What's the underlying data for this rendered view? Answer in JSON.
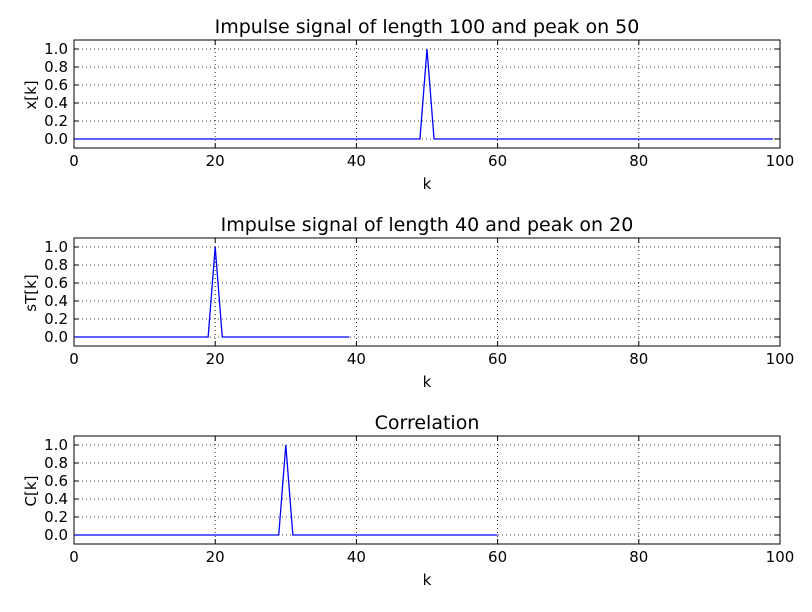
{
  "chart_data": [
    {
      "type": "line",
      "title": "Impulse signal of length 100 and peak on 50",
      "xlabel": "k",
      "ylabel": "x[k]",
      "xlim": [
        0,
        100
      ],
      "ylim": [
        -0.1,
        1.1
      ],
      "xticks": [
        "0",
        "20",
        "40",
        "60",
        "80",
        "100"
      ],
      "yticks": [
        "0.0",
        "0.2",
        "0.4",
        "0.6",
        "0.8",
        "1.0"
      ],
      "grid": true,
      "series": [
        {
          "x": [
            0,
            49,
            50,
            51,
            99
          ],
          "y": [
            0,
            0,
            1,
            0,
            0
          ]
        }
      ]
    },
    {
      "type": "line",
      "title": "Impulse signal of length 40 and peak on 20",
      "xlabel": "k",
      "ylabel": "sT[k]",
      "xlim": [
        0,
        100
      ],
      "ylim": [
        -0.1,
        1.1
      ],
      "xticks": [
        "0",
        "20",
        "40",
        "60",
        "80",
        "100"
      ],
      "yticks": [
        "0.0",
        "0.2",
        "0.4",
        "0.6",
        "0.8",
        "1.0"
      ],
      "grid": true,
      "series": [
        {
          "x": [
            0,
            19,
            20,
            21,
            39
          ],
          "y": [
            0,
            0,
            1,
            0,
            0
          ]
        }
      ]
    },
    {
      "type": "line",
      "title": "Correlation",
      "xlabel": "k",
      "ylabel": "C[k]",
      "xlim": [
        0,
        100
      ],
      "ylim": [
        -0.1,
        1.1
      ],
      "xticks": [
        "0",
        "20",
        "40",
        "60",
        "80",
        "100"
      ],
      "yticks": [
        "0.0",
        "0.2",
        "0.4",
        "0.6",
        "0.8",
        "1.0"
      ],
      "grid": true,
      "series": [
        {
          "x": [
            0,
            29,
            30,
            31,
            60
          ],
          "y": [
            0,
            0,
            1,
            0,
            0
          ]
        }
      ]
    }
  ],
  "colors": {
    "series": "#0000ff",
    "axes": "#000000",
    "background": "#ffffff"
  }
}
